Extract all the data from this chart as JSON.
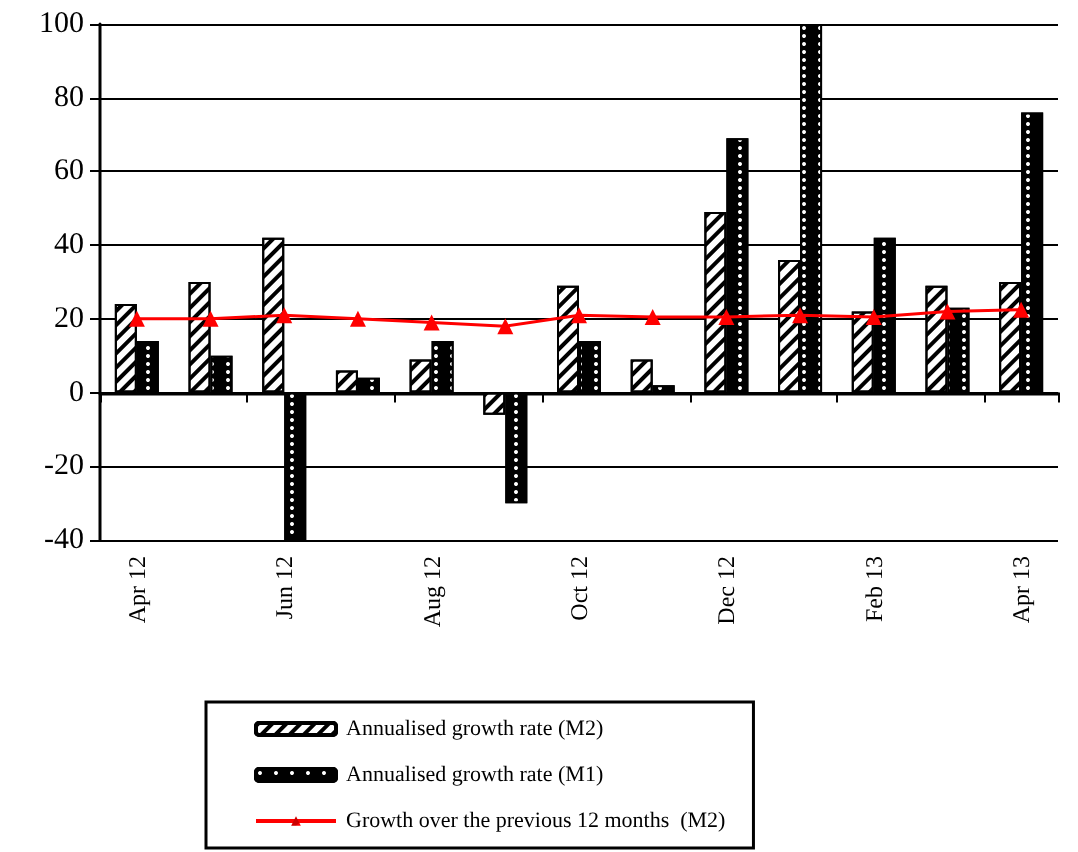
{
  "chart_data": {
    "type": "bar",
    "categories": [
      "Apr 12",
      null,
      "Jun 12",
      null,
      "Aug 12",
      null,
      "Oct 12",
      null,
      "Dec 12",
      null,
      "Feb 13",
      null,
      "Apr 13"
    ],
    "series": [
      {
        "name": "Annualised growth rate (M2)",
        "color": "#ffffff",
        "values": [
          24,
          30,
          42,
          6,
          9,
          -6,
          29,
          9,
          49,
          36,
          22,
          29,
          30
        ]
      },
      {
        "name": "Annualised growth rate (M1)",
        "color": "#000000",
        "values": [
          14,
          10,
          -40,
          4,
          14,
          -30,
          14,
          2,
          69,
          100,
          42,
          23,
          76
        ]
      },
      {
        "name": "Growth over the previous 12 months  (M2)",
        "type": "line",
        "color": "#ff0000",
        "marker": "triangle",
        "values": [
          20,
          20,
          21,
          20,
          19,
          18,
          21,
          20.5,
          20.5,
          21,
          20.5,
          22,
          22.5
        ]
      }
    ],
    "ylim": [
      -40,
      100
    ],
    "yticks": [
      -40,
      -20,
      0,
      20,
      40,
      60,
      80,
      100
    ],
    "grid": "y",
    "legend": "bottom"
  }
}
